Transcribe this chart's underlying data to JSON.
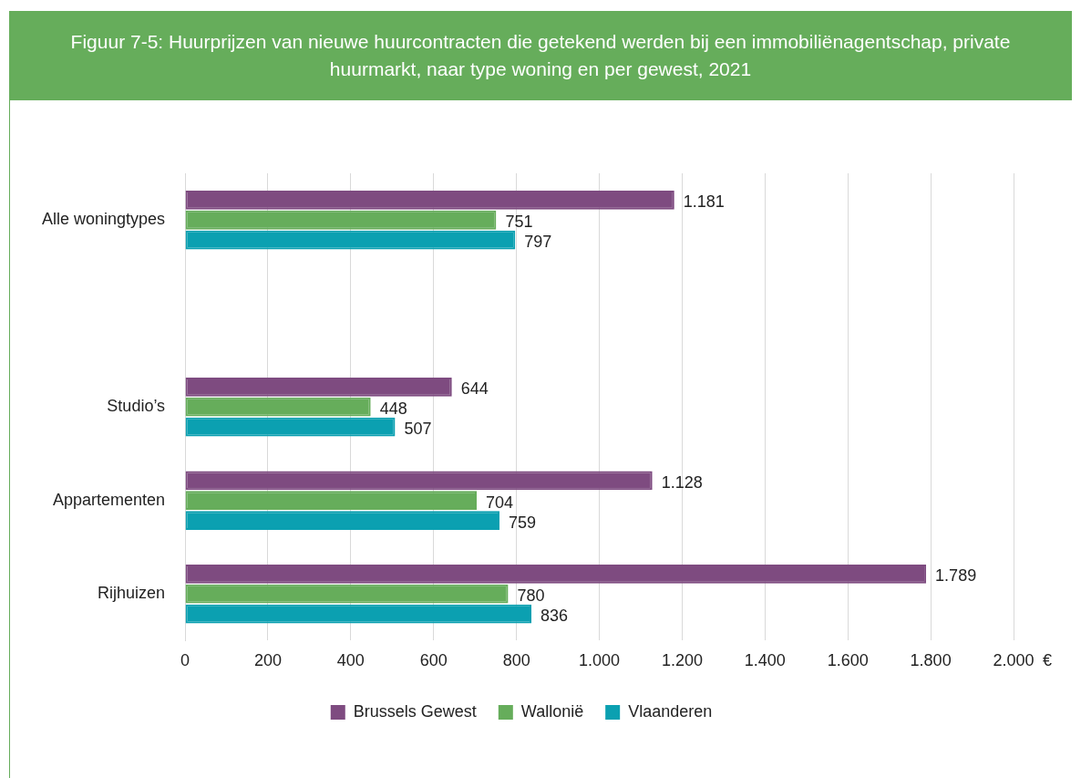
{
  "chart_data": {
    "type": "bar",
    "orientation": "horizontal",
    "title": "Figuur 7-5: Huurprijzen van nieuwe huurcontracten die getekend werden bij een immobiliënagentschap, private huurmarkt, naar type woning en per gewest, 2021",
    "xlabel": "€",
    "categories": [
      "Alle woningtypes",
      null,
      "Studio’s",
      "Appartementen",
      "Rijhuizen"
    ],
    "series": [
      {
        "name": "Brussels Gewest",
        "color": "#7e4b80",
        "values": [
          1181,
          null,
          644,
          1128,
          1789
        ],
        "value_labels": [
          "1.181",
          null,
          "644",
          "1.128",
          "1.789"
        ]
      },
      {
        "name": "Wallonië",
        "color": "#66ad5b",
        "values": [
          751,
          null,
          448,
          704,
          780
        ],
        "value_labels": [
          "751",
          null,
          "448",
          "704",
          "780"
        ]
      },
      {
        "name": "Vlaanderen",
        "color": "#0ba0b1",
        "values": [
          797,
          null,
          507,
          759,
          836
        ],
        "value_labels": [
          "797",
          null,
          "507",
          "759",
          "836"
        ]
      }
    ],
    "xlim": [
      0,
      2000
    ],
    "xticks": [
      0,
      200,
      400,
      600,
      800,
      {
        "value": 1000,
        "label": "1.000"
      },
      {
        "value": 1200,
        "label": "1.200"
      },
      {
        "value": 1400,
        "label": "1.400"
      },
      {
        "value": 1600,
        "label": "1.600"
      },
      {
        "value": 1800,
        "label": "1.800"
      },
      {
        "value": 2000,
        "label": "2.000"
      }
    ],
    "grid": "x",
    "legend": "bottom"
  }
}
